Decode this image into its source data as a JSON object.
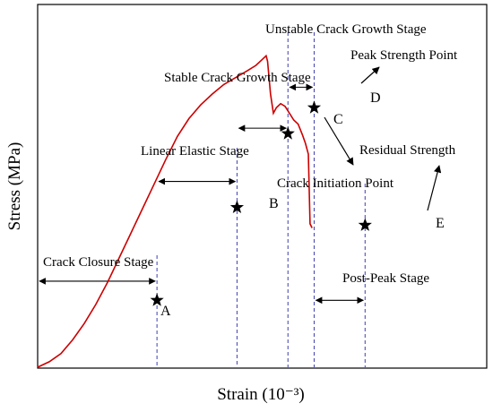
{
  "chart_data": {
    "type": "line",
    "title": "",
    "xlabel": "Strain (10⁻³)",
    "ylabel": "Stress (MPa)",
    "grid": false,
    "legend": "none",
    "xlim": [
      0,
      100
    ],
    "ylim": [
      0,
      100
    ],
    "tick_labels": "none",
    "colors": {
      "curve": "#cc0000",
      "guides": "#3f3fb0",
      "axes": "#000000",
      "markers": "#000000"
    },
    "series": [
      {
        "values_x": [
          0,
          4,
          8,
          12,
          16,
          20,
          24,
          28,
          32,
          36,
          40,
          44,
          48,
          52,
          56,
          60,
          64,
          68,
          72,
          75,
          77,
          78.5,
          79,
          80,
          81,
          82,
          83.5,
          85,
          86.5,
          88,
          89.5,
          91,
          92,
          93,
          93.6,
          94.3
        ],
        "values_y": [
          0,
          2,
          5,
          10,
          16,
          23,
          31,
          40,
          49,
          58,
          67,
          76,
          84.5,
          91,
          96,
          100,
          103.5,
          106,
          108.5,
          110.5,
          112.5,
          114,
          112,
          100,
          93,
          95,
          96.5,
          95.5,
          93,
          90.5,
          89,
          85,
          82,
          78,
          52.5,
          51
        ]
      }
    ],
    "ymax_note": "",
    "points": [
      {
        "label": "A",
        "x": 41,
        "y": 24.5
      },
      {
        "label": "B",
        "x": 68.5,
        "y": 58.5
      },
      {
        "label": "C",
        "x": 86,
        "y": 85.5
      },
      {
        "label": "D",
        "x": 95,
        "y": 95
      },
      {
        "label": "E",
        "x": 112.5,
        "y": 52
      }
    ],
    "stage_lines_x": [
      41,
      68.5,
      86,
      95,
      112.5
    ],
    "stages": [
      {
        "label": "Crack Closure Stage",
        "from_x": 0,
        "to_x": 41,
        "y": 31.5
      },
      {
        "label": "Linear Elastic Stage",
        "from_x": 41,
        "to_x": 68.5,
        "y": 68
      },
      {
        "label": "Stable Crack Growth Stage",
        "from_x": 68.5,
        "to_x": 86,
        "y": 87.5
      },
      {
        "label": "Unstable Crack Growth Stage",
        "from_x": 86,
        "to_x": 95,
        "y": 102.5
      },
      {
        "label": "Post-Peak Stage",
        "from_x": 95,
        "to_x": 112.5,
        "y": 24.5
      }
    ],
    "annotations": [
      {
        "text": "Peak Strength Point"
      },
      {
        "text": "Crack Initiation Point"
      },
      {
        "text": "Residual Strength"
      }
    ]
  }
}
